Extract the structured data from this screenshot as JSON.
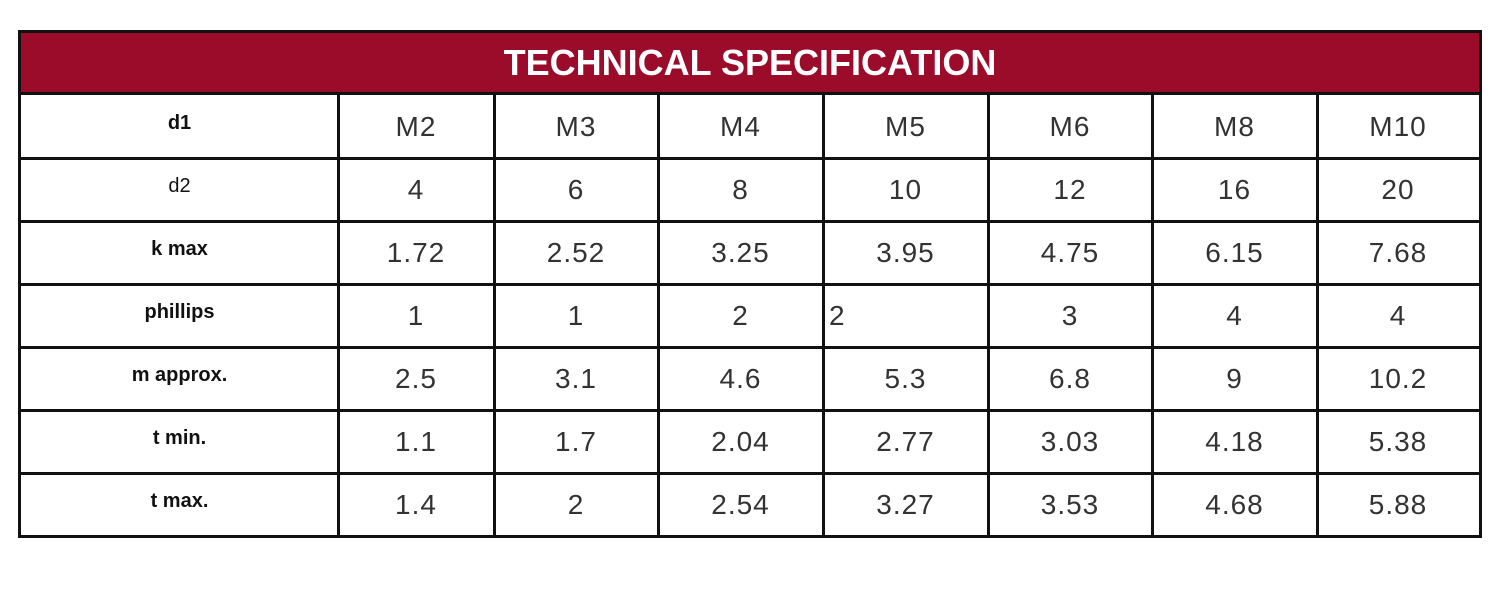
{
  "header": {
    "title": "TECHNICAL SPECIFICATION"
  },
  "table": {
    "rows": [
      [
        "d1",
        "M2",
        "M3",
        "M4",
        "M5",
        "M6",
        "M8",
        "M10"
      ],
      [
        "d2",
        "4",
        "6",
        "8",
        "10",
        "12",
        "16",
        "20"
      ],
      [
        "k max",
        "1.72",
        "2.52",
        "3.25",
        "3.95",
        "4.75",
        "6.15",
        "7.68"
      ],
      [
        "phillips",
        "1",
        "1",
        "2",
        "2",
        "3",
        "4",
        "4"
      ],
      [
        "m approx.",
        "2.5",
        "3.1",
        "4.6",
        "5.3",
        "6.8",
        "9",
        "10.2"
      ],
      [
        "t min.",
        "1.1",
        "1.7",
        "2.04",
        "2.77",
        "3.03",
        "4.18",
        "5.38"
      ],
      [
        "t max.",
        "1.4",
        "2",
        "2.54",
        "3.27",
        "3.53",
        "4.68",
        "5.88"
      ]
    ]
  }
}
